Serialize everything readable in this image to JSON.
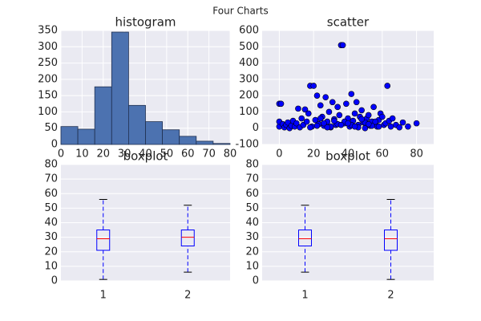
{
  "title": "Four Charts",
  "chart_data": [
    {
      "type": "histogram",
      "title": "histogram",
      "bins": [
        0,
        8,
        16,
        24,
        32,
        40,
        48,
        56,
        64,
        72,
        80
      ],
      "values": [
        55,
        47,
        177,
        345,
        120,
        70,
        45,
        25,
        10,
        3
      ],
      "color": "#4c72b0",
      "xlim": [
        0,
        80
      ],
      "xticks": [
        0,
        10,
        20,
        30,
        40,
        50,
        60,
        70,
        80
      ],
      "ylim": [
        0,
        350
      ],
      "yticks": [
        0,
        50,
        100,
        150,
        200,
        250,
        300,
        350
      ],
      "grid": true
    },
    {
      "type": "scatter",
      "title": "scatter",
      "color": "#0000ff",
      "x": [
        0,
        0,
        0,
        1,
        2,
        3,
        4,
        5,
        6,
        7,
        8,
        9,
        10,
        11,
        12,
        13,
        14,
        15,
        16,
        17,
        18,
        19,
        20,
        21,
        22,
        23,
        24,
        25,
        26,
        27,
        28,
        29,
        30,
        31,
        32,
        33,
        34,
        35,
        36,
        37,
        38,
        39,
        40,
        41,
        42,
        43,
        44,
        45,
        46,
        47,
        48,
        49,
        50,
        51,
        52,
        53,
        54,
        55,
        56,
        57,
        58,
        59,
        60,
        61,
        62,
        63,
        64,
        65,
        66,
        68,
        70,
        72,
        75,
        80,
        18,
        22,
        26,
        30,
        34,
        38,
        42,
        46,
        50,
        54,
        58,
        24,
        28,
        32,
        36,
        40,
        44,
        48,
        52,
        56
      ],
      "values": [
        10,
        40,
        150,
        150,
        25,
        5,
        20,
        35,
        0,
        15,
        45,
        10,
        30,
        120,
        5,
        60,
        20,
        115,
        40,
        90,
        260,
        10,
        260,
        50,
        200,
        25,
        140,
        70,
        15,
        190,
        40,
        100,
        5,
        160,
        55,
        20,
        130,
        80,
        510,
        510,
        30,
        150,
        60,
        10,
        210,
        45,
        90,
        160,
        20,
        70,
        110,
        35,
        0,
        60,
        80,
        15,
        40,
        130,
        25,
        10,
        50,
        90,
        70,
        20,
        30,
        260,
        45,
        10,
        60,
        20,
        5,
        35,
        10,
        30,
        5,
        15,
        30,
        10,
        25,
        40,
        20,
        5,
        35,
        15,
        10,
        60,
        5,
        45,
        20,
        30,
        10,
        55,
        25,
        40
      ],
      "xlim": [
        -10,
        90
      ],
      "xticks": [
        0,
        20,
        40,
        60,
        80
      ],
      "ylim": [
        -100,
        600
      ],
      "yticks": [
        -100,
        0,
        100,
        200,
        300,
        400,
        500,
        600
      ],
      "grid": true
    },
    {
      "type": "boxplot",
      "title": "boxplot",
      "categories": [
        "1",
        "2"
      ],
      "boxes": [
        {
          "min": 1,
          "q1": 21,
          "median": 29,
          "q3": 35,
          "max": 56
        },
        {
          "min": 6,
          "q1": 24,
          "median": 30,
          "q3": 35,
          "max": 52
        }
      ],
      "ylim": [
        0,
        80
      ],
      "yticks": [
        0,
        10,
        20,
        30,
        40,
        50,
        60,
        70,
        80
      ],
      "grid": true
    },
    {
      "type": "boxplot",
      "title": "boxplot",
      "categories": [
        "1",
        "2"
      ],
      "boxes": [
        {
          "min": 6,
          "q1": 24,
          "median": 29,
          "q3": 35,
          "max": 52
        },
        {
          "min": 1,
          "q1": 21,
          "median": 29,
          "q3": 35,
          "max": 56
        }
      ],
      "ylim": [
        0,
        80
      ],
      "yticks": [
        0,
        10,
        20,
        30,
        40,
        50,
        60,
        70,
        80
      ],
      "grid": true
    }
  ]
}
